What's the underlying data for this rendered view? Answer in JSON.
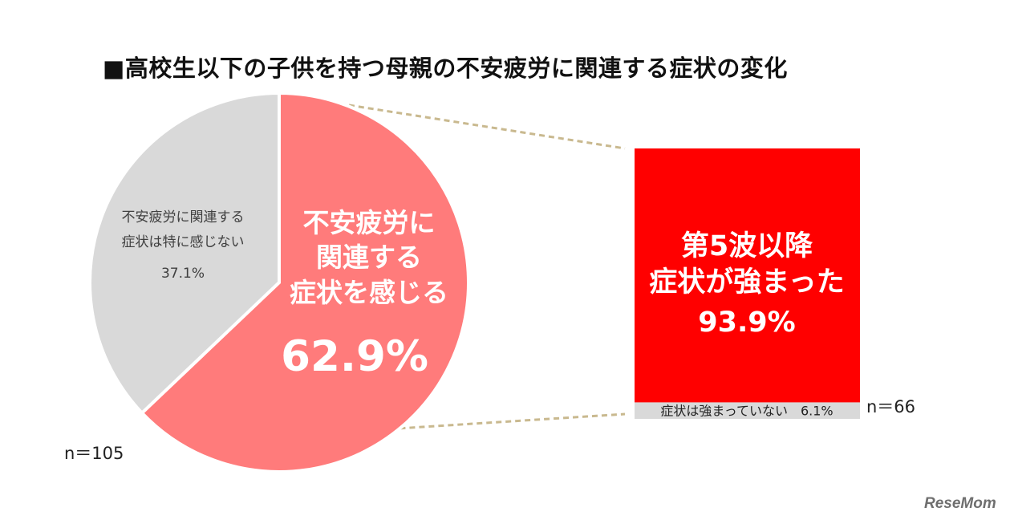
{
  "title": "■高校生以下の子供を持つ母親の不安疲労に関連する症状の変化",
  "watermark": "ReseMom",
  "chart_data": [
    {
      "type": "pie",
      "n_label": "n＝105",
      "slices": [
        {
          "lines": [
            "不安疲労に",
            "関連する",
            "症状を感じる"
          ],
          "value_label": "62.9%",
          "value": 62.9,
          "color": "#ff7b7b"
        },
        {
          "lines": [
            "不安疲労に関連する",
            "症状は特に感じない",
            "37.1%"
          ],
          "value": 37.1,
          "color": "#d9d9d9"
        }
      ]
    },
    {
      "type": "bar",
      "stacked": true,
      "n_label": "n＝66",
      "segments": [
        {
          "lines": [
            "第5波以降",
            "症状が強まった",
            "93.9%"
          ],
          "value": 93.9,
          "color": "#ff0000"
        },
        {
          "lines": [
            "症状は強まっていない　6.1%"
          ],
          "value": 6.1,
          "color": "#d9d9d9"
        }
      ]
    }
  ]
}
